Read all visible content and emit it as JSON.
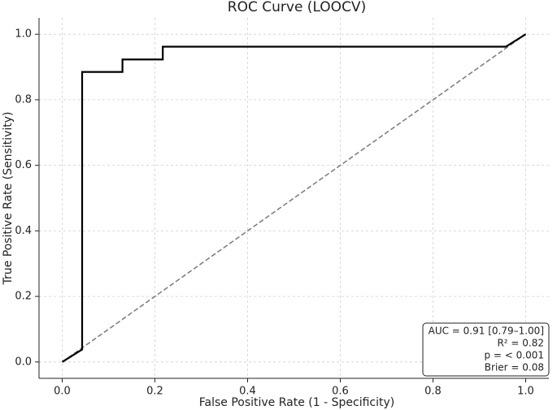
{
  "chart_data": {
    "type": "line",
    "title": "ROC Curve (LOOCV)",
    "x_label": "False Positive Rate (1 - Specificity)",
    "y_label": "True Positive Rate (Sensitivity)",
    "xlim": [
      -0.05,
      1.05
    ],
    "ylim": [
      -0.05,
      1.05
    ],
    "xticks": [
      {
        "value": 0,
        "label": "0.0"
      },
      0.2,
      0.4,
      0.6,
      0.8,
      {
        "value": 1,
        "label": "1.0"
      }
    ],
    "yticks": [
      {
        "value": 0,
        "label": "0.0"
      },
      0.2,
      0.4,
      0.6,
      0.8,
      {
        "value": 1,
        "label": "1.0"
      }
    ],
    "grid": true,
    "series": [
      {
        "color": "#000000",
        "dashed": false,
        "x": [
          0,
          0.043,
          0.043,
          0.13,
          0.13,
          0.217,
          0.217,
          0.957,
          1
        ],
        "values": [
          0,
          0.038,
          0.885,
          0.885,
          0.923,
          0.923,
          0.962,
          0.962,
          1
        ]
      },
      {
        "color": "#808080",
        "dashed": true,
        "x": [
          0,
          1
        ],
        "values": [
          0,
          1
        ]
      }
    ],
    "annotations": [
      "AUC = 0.91 [0.79–1.00]",
      "R² = 0.82",
      "p = < 0.001",
      "Brier = 0.08"
    ]
  }
}
